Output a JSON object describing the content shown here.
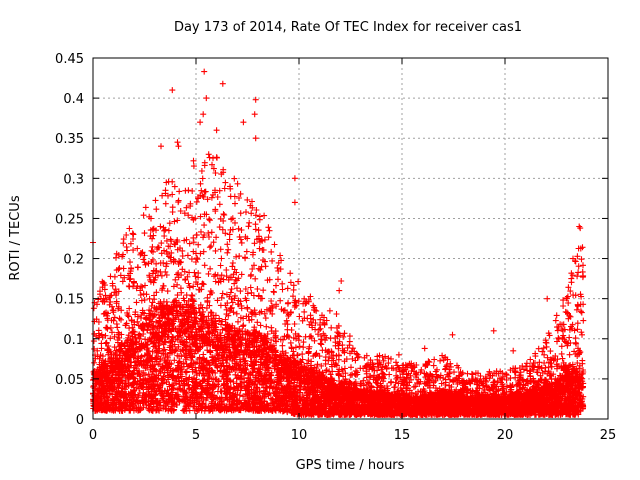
{
  "chart_data": {
    "type": "scatter",
    "title": "Day 173 of 2014, Rate Of TEC Index for receiver cas1",
    "xlabel": "GPS time / hours",
    "ylabel": "ROTI / TECUs",
    "xlim": [
      0,
      25
    ],
    "ylim": [
      0,
      0.45
    ],
    "xticks": [
      0,
      5,
      10,
      15,
      20,
      25
    ],
    "yticks": [
      0,
      0.05,
      0.1,
      0.15,
      0.2,
      0.25,
      0.3,
      0.35,
      0.4,
      0.45
    ],
    "xtick_labels": [
      "0",
      "5",
      "10",
      "15",
      "20",
      "25"
    ],
    "ytick_labels": [
      "0",
      "0.05",
      "0.1",
      "0.15",
      "0.2",
      "0.25",
      "0.3",
      "0.35",
      "0.4",
      "0.45"
    ],
    "grid": true,
    "marker": "+",
    "color": "#ff0000",
    "envelope": {
      "description": "approximate upper envelope of the dense point cloud (hour, ROTI)",
      "hours": [
        0,
        1,
        2,
        3,
        4,
        5,
        6,
        7,
        8,
        9,
        10,
        11,
        12,
        13,
        14,
        15,
        16,
        17,
        18,
        19,
        20,
        21,
        22,
        23,
        23.8
      ],
      "roti_max": [
        0.15,
        0.2,
        0.25,
        0.28,
        0.31,
        0.33,
        0.33,
        0.3,
        0.27,
        0.22,
        0.17,
        0.14,
        0.13,
        0.08,
        0.08,
        0.07,
        0.07,
        0.08,
        0.06,
        0.06,
        0.06,
        0.07,
        0.1,
        0.16,
        0.24
      ],
      "roti_typical": [
        0.04,
        0.06,
        0.08,
        0.1,
        0.11,
        0.1,
        0.09,
        0.08,
        0.08,
        0.06,
        0.05,
        0.04,
        0.03,
        0.025,
        0.025,
        0.02,
        0.02,
        0.025,
        0.02,
        0.02,
        0.02,
        0.025,
        0.03,
        0.04,
        0.05
      ],
      "roti_min": [
        0.01,
        0.01,
        0.01,
        0.01,
        0.01,
        0.01,
        0.01,
        0.01,
        0.01,
        0.01,
        0.005,
        0.005,
        0.005,
        0.005,
        0.005,
        0.005,
        0.005,
        0.005,
        0.005,
        0.005,
        0.005,
        0.005,
        0.005,
        0.005,
        0.005
      ]
    },
    "outliers": [
      {
        "x": 0.0,
        "y": 0.22
      },
      {
        "x": 3.85,
        "y": 0.41
      },
      {
        "x": 5.4,
        "y": 0.433
      },
      {
        "x": 6.3,
        "y": 0.418
      },
      {
        "x": 5.5,
        "y": 0.4
      },
      {
        "x": 7.9,
        "y": 0.398
      },
      {
        "x": 7.85,
        "y": 0.38
      },
      {
        "x": 5.35,
        "y": 0.38
      },
      {
        "x": 7.3,
        "y": 0.37
      },
      {
        "x": 5.2,
        "y": 0.37
      },
      {
        "x": 4.1,
        "y": 0.345
      },
      {
        "x": 3.3,
        "y": 0.34
      },
      {
        "x": 6.0,
        "y": 0.36
      },
      {
        "x": 4.15,
        "y": 0.34
      },
      {
        "x": 7.9,
        "y": 0.35
      },
      {
        "x": 9.8,
        "y": 0.3
      },
      {
        "x": 9.8,
        "y": 0.27
      },
      {
        "x": 23.3,
        "y": 0.2
      },
      {
        "x": 23.6,
        "y": 0.24
      },
      {
        "x": 23.65,
        "y": 0.238
      },
      {
        "x": 23.5,
        "y": 0.178
      },
      {
        "x": 22.05,
        "y": 0.15
      },
      {
        "x": 12.05,
        "y": 0.172
      },
      {
        "x": 11.95,
        "y": 0.16
      },
      {
        "x": 17.45,
        "y": 0.105
      },
      {
        "x": 19.45,
        "y": 0.11
      },
      {
        "x": 16.1,
        "y": 0.088
      },
      {
        "x": 14.85,
        "y": 0.08
      },
      {
        "x": 20.4,
        "y": 0.085
      },
      {
        "x": 13.8,
        "y": 0.078
      }
    ]
  }
}
